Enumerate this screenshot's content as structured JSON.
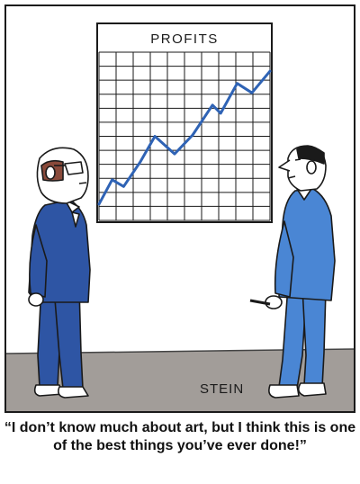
{
  "cartoon": {
    "chart_title": "PROFITS",
    "signature": "STEIN",
    "caption": "“I don’t know much about art, but I think this is one of the best things you’ve ever done!”"
  },
  "chart_data": {
    "type": "line",
    "title": "PROFITS",
    "grid": true,
    "series": [
      {
        "values": [
          [
            0.0,
            1.2
          ],
          [
            0.8,
            3.0
          ],
          [
            1.5,
            2.5
          ],
          [
            2.5,
            4.3
          ],
          [
            3.4,
            6.2
          ],
          [
            4.6,
            4.9
          ],
          [
            5.7,
            6.3
          ],
          [
            6.9,
            8.5
          ],
          [
            7.4,
            7.9
          ],
          [
            8.4,
            10.1
          ],
          [
            9.3,
            9.4
          ],
          [
            10.4,
            11.0
          ]
        ]
      }
    ],
    "xlim": [
      0,
      10.4
    ],
    "ylim": [
      0,
      12.4
    ],
    "line_color": "#2f63b5"
  },
  "colors": {
    "left_man_suit": "#2e55a4",
    "right_man_suit": "#4a86d4",
    "floor": "#a29d99",
    "outline": "#1a1a1a"
  }
}
